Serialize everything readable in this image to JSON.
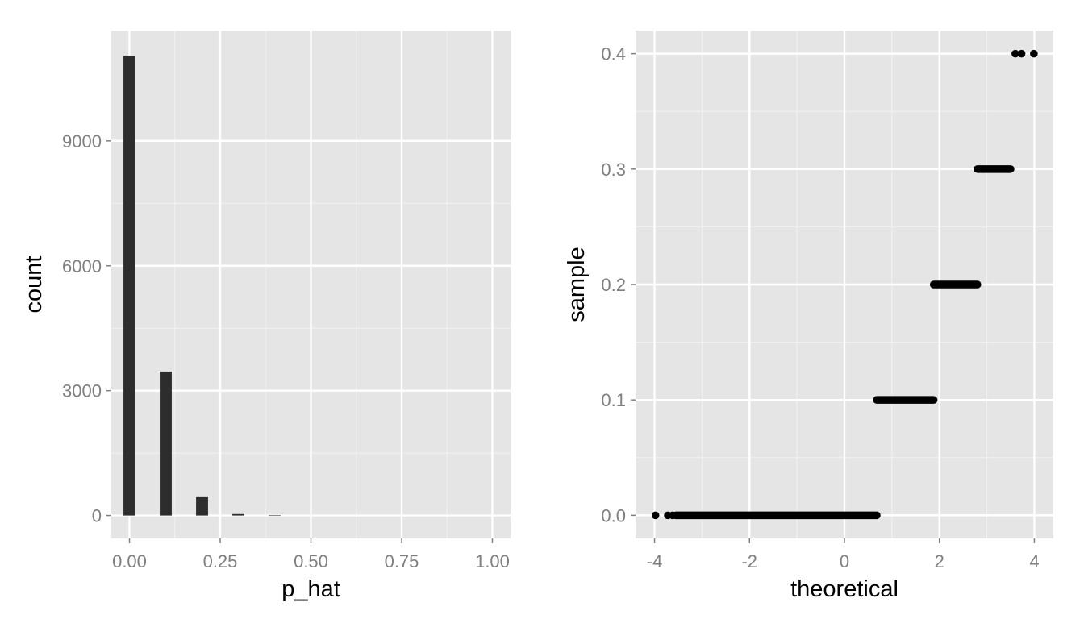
{
  "chart_data": [
    {
      "type": "bar",
      "xlabel": "p_hat",
      "ylabel": "count",
      "xlim": [
        -0.05,
        1.05
      ],
      "ylim": [
        -550,
        11650
      ],
      "grid": true,
      "legend": "none",
      "x_ticks": [
        {
          "value": 0.0,
          "label": "0.00"
        },
        {
          "value": 0.25,
          "label": "0.25"
        },
        {
          "value": 0.5,
          "label": "0.50"
        },
        {
          "value": 0.75,
          "label": "0.75"
        },
        {
          "value": 1.0,
          "label": "1.00"
        }
      ],
      "y_ticks": [
        {
          "value": 0,
          "label": "0"
        },
        {
          "value": 3000,
          "label": "3000"
        },
        {
          "value": 6000,
          "label": "6000"
        },
        {
          "value": 9000,
          "label": "9000"
        }
      ],
      "bin_width": 0.033,
      "bins": [
        {
          "x": 0.0,
          "count": 11050
        },
        {
          "x": 0.1,
          "count": 3460
        },
        {
          "x": 0.2,
          "count": 440
        },
        {
          "x": 0.3,
          "count": 35
        },
        {
          "x": 0.4,
          "count": 3
        }
      ]
    },
    {
      "type": "scatter",
      "xlabel": "theoretical",
      "ylabel": "sample",
      "xlim": [
        -4.4,
        4.4
      ],
      "ylim": [
        -0.02,
        0.42
      ],
      "grid": true,
      "legend": "none",
      "x_ticks": [
        {
          "value": -4,
          "label": "-4"
        },
        {
          "value": -2,
          "label": "-2"
        },
        {
          "value": 0,
          "label": "0"
        },
        {
          "value": 2,
          "label": "2"
        },
        {
          "value": 4,
          "label": "4"
        }
      ],
      "y_ticks": [
        {
          "value": 0.0,
          "label": "0.0"
        },
        {
          "value": 0.1,
          "label": "0.1"
        },
        {
          "value": 0.2,
          "label": "0.2"
        },
        {
          "value": 0.3,
          "label": "0.3"
        },
        {
          "value": 0.4,
          "label": "0.4"
        }
      ],
      "segments": [
        {
          "sample": 0.0,
          "x_from": -3.55,
          "x_to": 0.68
        },
        {
          "sample": 0.1,
          "x_from": 0.68,
          "x_to": 1.88
        },
        {
          "sample": 0.2,
          "x_from": 1.88,
          "x_to": 2.8
        },
        {
          "sample": 0.3,
          "x_from": 2.8,
          "x_to": 3.5
        }
      ],
      "points": [
        {
          "x": -3.98,
          "y": 0.0
        },
        {
          "x": -3.72,
          "y": 0.0
        },
        {
          "x": -3.62,
          "y": 0.0
        },
        {
          "x": 3.6,
          "y": 0.4
        },
        {
          "x": 3.73,
          "y": 0.4
        },
        {
          "x": 3.99,
          "y": 0.4
        }
      ]
    }
  ]
}
